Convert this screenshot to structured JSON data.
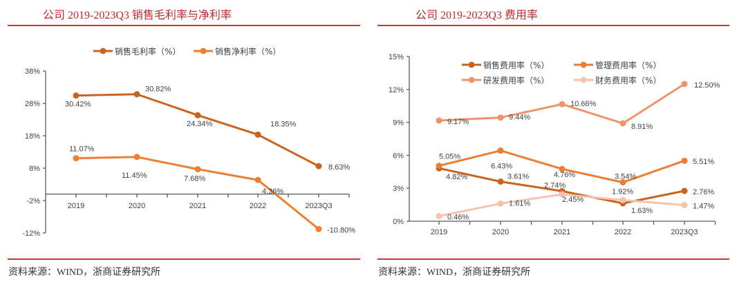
{
  "left_panel": {
    "title": "公司 2019-2023Q3 销售毛利率与净利率",
    "source": "资料来源：WIND，浙商证券研究所"
  },
  "right_panel": {
    "title": "公司 2019-2023Q3 费用率",
    "source": "资料来源：WIND，浙商证券研究所"
  },
  "chart_data": [
    {
      "type": "line",
      "title": "公司 2019-2023Q3 销售毛利率与净利率",
      "categories": [
        "2019",
        "2020",
        "2021",
        "2022",
        "2023Q3"
      ],
      "ylim": [
        -12,
        38
      ],
      "yticks": [
        38,
        28,
        18,
        8,
        -2,
        -12
      ],
      "ytick_labels": [
        "38%",
        "28%",
        "18%",
        "8%",
        "-2%",
        "-12%"
      ],
      "xlabel": "",
      "ylabel": "",
      "grid": false,
      "legend": "top-center",
      "series": [
        {
          "name": "销售毛利率（%）",
          "color": "#c8641e",
          "values": [
            30.42,
            30.82,
            24.34,
            18.35,
            8.63
          ],
          "labels": [
            "30.42%",
            "30.82%",
            "24.34%",
            "18.35%",
            "8.63%"
          ]
        },
        {
          "name": "销售净利率（%）",
          "color": "#ed7d31",
          "values": [
            11.07,
            11.45,
            7.68,
            4.36,
            -10.8
          ],
          "labels": [
            "11.07%",
            "11.45%",
            "7.68%",
            "4.36%",
            "-10.80%"
          ]
        }
      ]
    },
    {
      "type": "line",
      "title": "公司 2019-2023Q3 费用率",
      "categories": [
        "2019",
        "2020",
        "2021",
        "2022",
        "2023Q3"
      ],
      "ylim": [
        0,
        15
      ],
      "yticks": [
        15,
        12,
        9,
        6,
        3,
        0
      ],
      "ytick_labels": [
        "15%",
        "12%",
        "9%",
        "6%",
        "3%",
        "0%"
      ],
      "xlabel": "",
      "ylabel": "",
      "grid": false,
      "legend": "top-center",
      "series": [
        {
          "name": "销售费用率（%）",
          "color": "#c8641e",
          "values": [
            4.82,
            3.61,
            2.74,
            1.63,
            2.76
          ],
          "labels": [
            "4.82%",
            "3.61%",
            "2.74%",
            "1.63%",
            "2.76%"
          ]
        },
        {
          "name": "管理费用率（%）",
          "color": "#ed7d31",
          "values": [
            5.05,
            6.43,
            4.76,
            3.54,
            5.51
          ],
          "labels": [
            "5.05%",
            "6.43%",
            "4.76%",
            "3.54%",
            "5.51%"
          ]
        },
        {
          "name": "研发费用率（%）",
          "color": "#f0936a",
          "values": [
            9.17,
            9.44,
            10.66,
            8.91,
            12.5
          ],
          "labels": [
            "9.17%",
            "9.44%",
            "10.66%",
            "8.91%",
            "12.50%"
          ]
        },
        {
          "name": "财务费用率（%）",
          "color": "#f6c2ae",
          "values": [
            0.46,
            1.61,
            2.45,
            1.92,
            1.47
          ],
          "labels": [
            "0.46%",
            "1.61%",
            "2.45%",
            "1.92%",
            "1.47%"
          ]
        }
      ]
    }
  ]
}
